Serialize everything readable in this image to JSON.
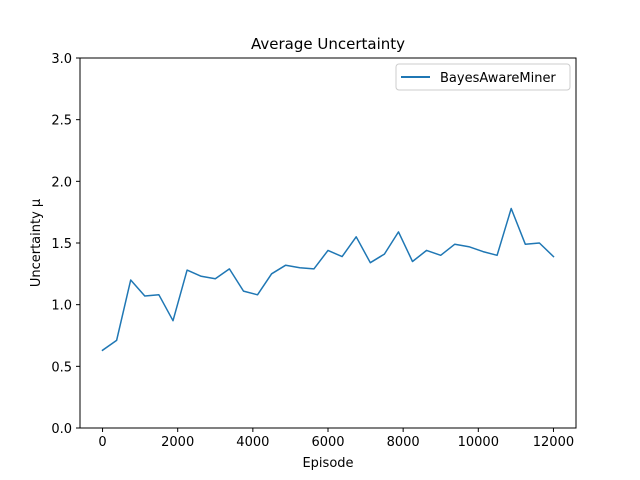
{
  "chart_data": {
    "type": "line",
    "title": "Average Uncertainty",
    "xlabel": "Episode",
    "ylabel": "Uncertainty μ",
    "xlim": [
      -600,
      12600
    ],
    "ylim": [
      0.0,
      3.0
    ],
    "xticks": [
      0,
      2000,
      4000,
      6000,
      8000,
      10000,
      12000
    ],
    "yticks": [
      0.0,
      0.5,
      1.0,
      1.5,
      2.0,
      2.5,
      3.0
    ],
    "xtick_labels": [
      "0",
      "2000",
      "4000",
      "6000",
      "8000",
      "10000",
      "12000"
    ],
    "ytick_labels": [
      "0.0",
      "0.5",
      "1.0",
      "1.5",
      "2.0",
      "2.5",
      "3.0"
    ],
    "grid": false,
    "legend_position": "top-right",
    "series": [
      {
        "name": "BayesAwareMiner",
        "color": "#1f77b4",
        "x": [
          0,
          375,
          750,
          1125,
          1500,
          1875,
          2250,
          2625,
          3000,
          3375,
          3750,
          4125,
          4500,
          4875,
          5250,
          5625,
          6000,
          6375,
          6750,
          7125,
          7500,
          7875,
          8250,
          8625,
          9000,
          9375,
          9750,
          10125,
          10500,
          10875,
          11250,
          11625,
          12000
        ],
        "y": [
          0.63,
          0.71,
          1.2,
          1.07,
          1.08,
          0.87,
          1.28,
          1.23,
          1.21,
          1.29,
          1.11,
          1.08,
          1.25,
          1.32,
          1.3,
          1.29,
          1.44,
          1.39,
          1.55,
          1.34,
          1.41,
          1.59,
          1.35,
          1.44,
          1.4,
          1.49,
          1.47,
          1.43,
          1.4,
          1.78,
          1.49,
          1.5,
          1.39
        ]
      }
    ]
  }
}
